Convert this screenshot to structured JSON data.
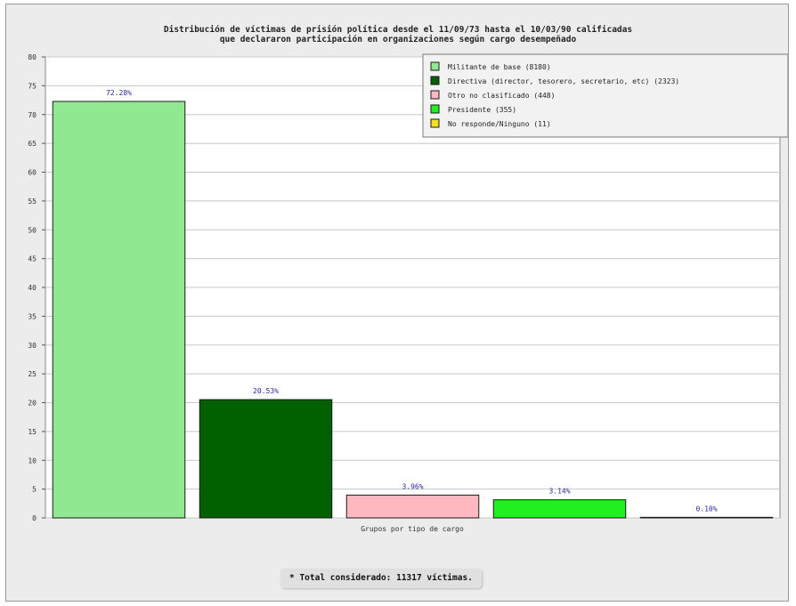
{
  "chart_data": {
    "type": "bar",
    "title": [
      "Distribución de víctimas de prisión política desde el 11/09/73 hasta el 10/03/90 calificadas",
      "que declararon participación en organizaciones según cargo desempeñado"
    ],
    "xlabel": "Grupos por tipo de cargo",
    "ylabel": "",
    "ylim": [
      0,
      80
    ],
    "yticks": [
      "0",
      "5",
      "10",
      "15",
      "20",
      "25",
      "30",
      "35",
      "40",
      "45",
      "50",
      "55",
      "60",
      "65",
      "70",
      "75",
      "80"
    ],
    "grid": true,
    "legend_position": "top-right",
    "categories": [
      "Militante de base (8180)",
      "Directiva (director, tesorero, secretario, etc) (2323)",
      "Otro no clasificado (448)",
      "Presidente (355)",
      "No responde/Ninguno (11)"
    ],
    "values": [
      72.28,
      20.53,
      3.96,
      3.14,
      0.1
    ],
    "value_labels": [
      "72.28%",
      "20.53%",
      "3.96%",
      "3.14%",
      "0.10%"
    ],
    "colors": [
      "#90e890",
      "#006000",
      "#ffb8c0",
      "#20f020",
      "#f0e020"
    ]
  },
  "footer": {
    "total_text": "* Total considerado: 11317 víctimas."
  }
}
